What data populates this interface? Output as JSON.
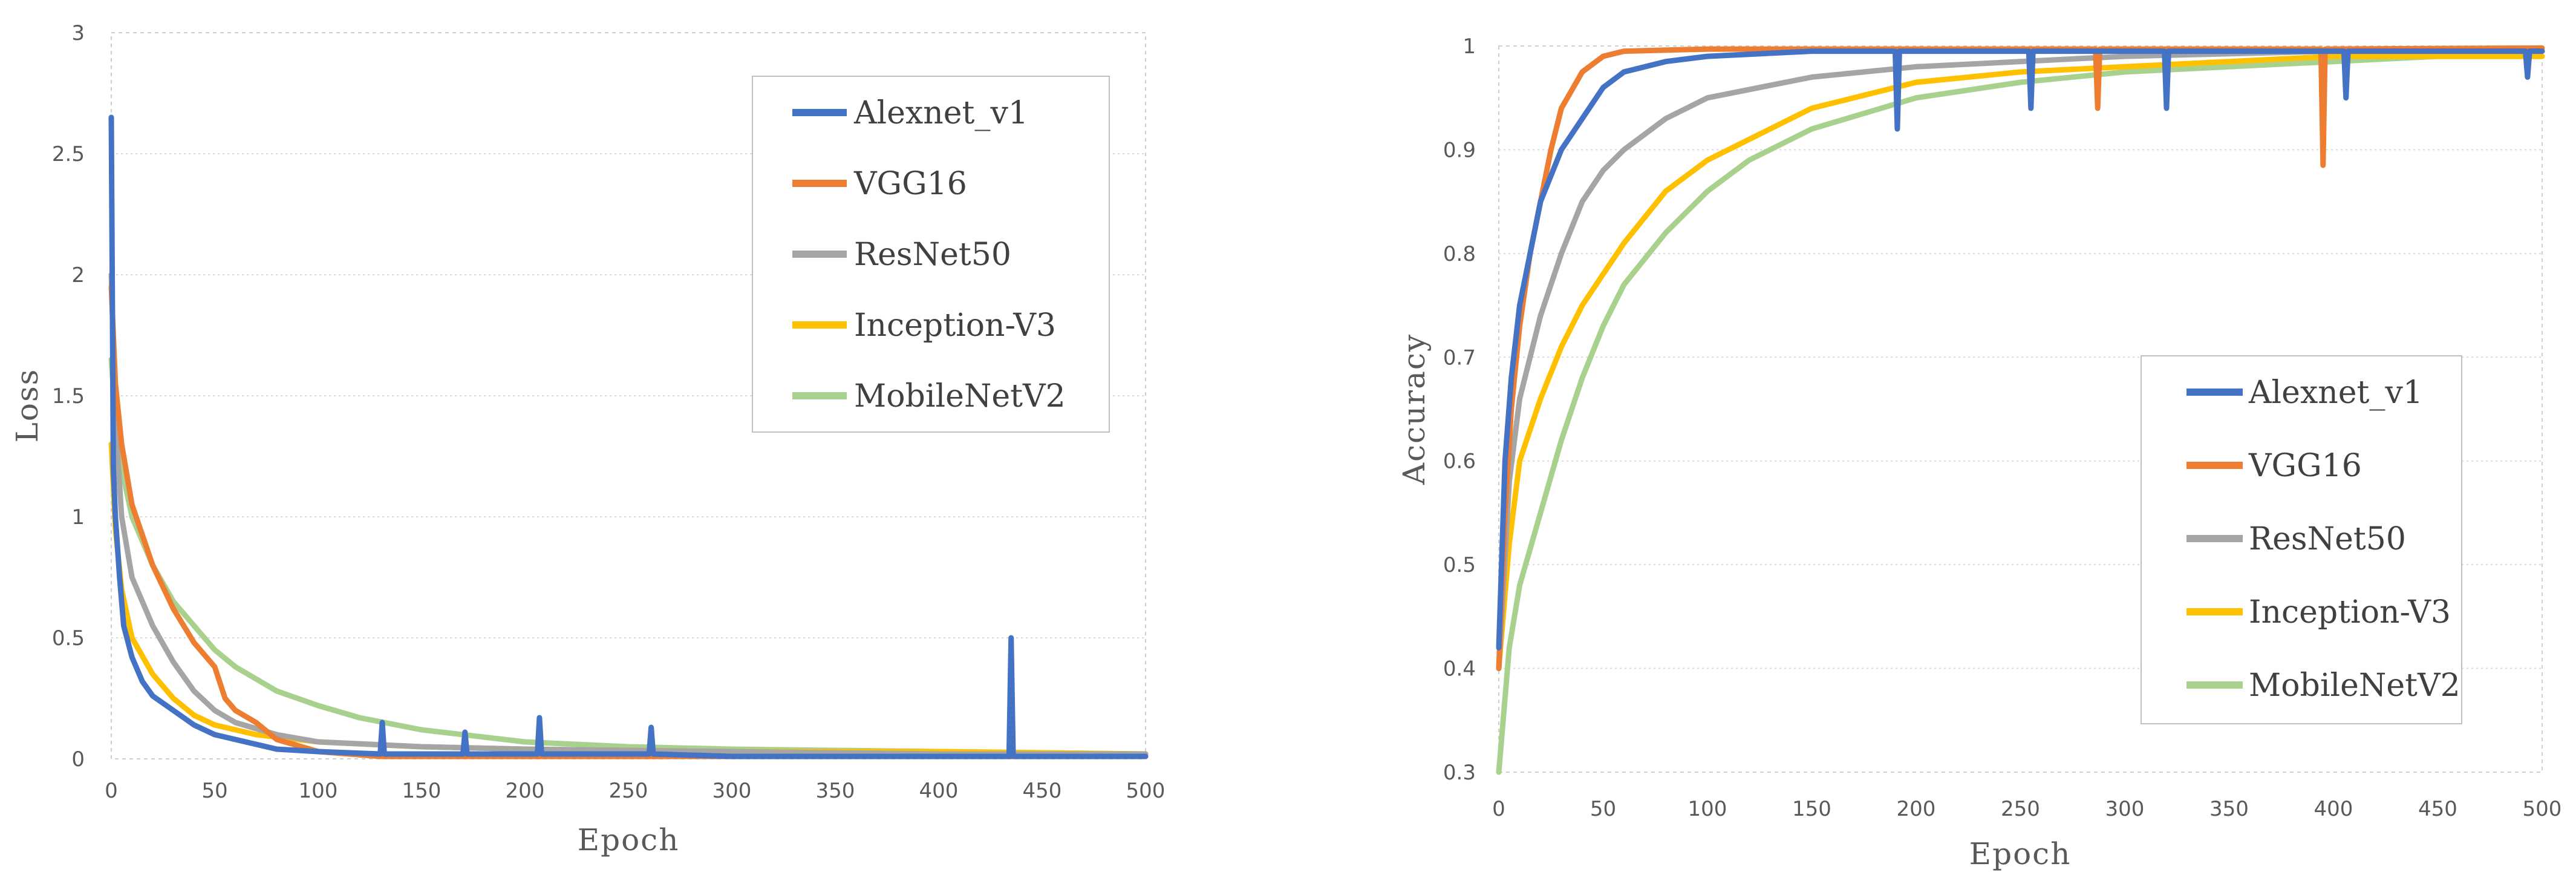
{
  "chart_data": [
    {
      "type": "line",
      "xlabel": "Epoch",
      "ylabel": "Loss",
      "xlim": [
        0,
        500
      ],
      "ylim": [
        0,
        3
      ],
      "xticks": [
        "0",
        "50",
        "100",
        "150",
        "200",
        "250",
        "300",
        "350",
        "400",
        "450",
        "500"
      ],
      "yticks": [
        "0",
        "0.5",
        "1",
        "1.5",
        "2",
        "2.5",
        "3"
      ],
      "legend_position": "top-right",
      "series": [
        {
          "name": "Alexnet_v1",
          "color": "#4472C4",
          "points": [
            [
              0,
              2.65
            ],
            [
              1,
              1.2
            ],
            [
              2,
              1.0
            ],
            [
              4,
              0.75
            ],
            [
              6,
              0.55
            ],
            [
              10,
              0.42
            ],
            [
              15,
              0.32
            ],
            [
              20,
              0.26
            ],
            [
              30,
              0.2
            ],
            [
              40,
              0.14
            ],
            [
              50,
              0.1
            ],
            [
              60,
              0.08
            ],
            [
              70,
              0.06
            ],
            [
              80,
              0.04
            ],
            [
              100,
              0.03
            ],
            [
              130,
              0.02
            ],
            [
              131,
              0.15
            ],
            [
              132,
              0.02
            ],
            [
              170,
              0.02
            ],
            [
              171,
              0.11
            ],
            [
              172,
              0.02
            ],
            [
              206,
              0.02
            ],
            [
              207,
              0.17
            ],
            [
              208,
              0.02
            ],
            [
              260,
              0.02
            ],
            [
              261,
              0.13
            ],
            [
              262,
              0.02
            ],
            [
              300,
              0.01
            ],
            [
              434,
              0.01
            ],
            [
              435,
              0.5
            ],
            [
              436,
              0.01
            ],
            [
              500,
              0.01
            ]
          ]
        },
        {
          "name": "VGG16",
          "color": "#ED7D31",
          "points": [
            [
              0,
              1.95
            ],
            [
              2,
              1.55
            ],
            [
              5,
              1.3
            ],
            [
              10,
              1.05
            ],
            [
              20,
              0.8
            ],
            [
              30,
              0.62
            ],
            [
              40,
              0.48
            ],
            [
              50,
              0.38
            ],
            [
              55,
              0.25
            ],
            [
              60,
              0.2
            ],
            [
              70,
              0.15
            ],
            [
              80,
              0.08
            ],
            [
              100,
              0.03
            ],
            [
              130,
              0.01
            ],
            [
              200,
              0.01
            ],
            [
              500,
              0.01
            ]
          ]
        },
        {
          "name": "ResNet50",
          "color": "#A5A5A5",
          "points": [
            [
              0,
              2.0
            ],
            [
              2,
              1.4
            ],
            [
              5,
              1.0
            ],
            [
              10,
              0.75
            ],
            [
              20,
              0.55
            ],
            [
              30,
              0.4
            ],
            [
              40,
              0.28
            ],
            [
              50,
              0.2
            ],
            [
              60,
              0.15
            ],
            [
              80,
              0.1
            ],
            [
              100,
              0.07
            ],
            [
              150,
              0.05
            ],
            [
              200,
              0.04
            ],
            [
              300,
              0.03
            ],
            [
              400,
              0.02
            ],
            [
              500,
              0.02
            ]
          ]
        },
        {
          "name": "Inception-V3",
          "color": "#FFC000",
          "points": [
            [
              0,
              1.3
            ],
            [
              2,
              0.95
            ],
            [
              5,
              0.7
            ],
            [
              10,
              0.5
            ],
            [
              20,
              0.35
            ],
            [
              30,
              0.25
            ],
            [
              40,
              0.18
            ],
            [
              50,
              0.14
            ],
            [
              70,
              0.1
            ],
            [
              100,
              0.07
            ],
            [
              150,
              0.05
            ],
            [
              200,
              0.04
            ],
            [
              300,
              0.03
            ],
            [
              400,
              0.03
            ],
            [
              500,
              0.02
            ]
          ]
        },
        {
          "name": "MobileNetV2",
          "color": "#A9D18E",
          "points": [
            [
              0,
              1.65
            ],
            [
              2,
              1.4
            ],
            [
              5,
              1.2
            ],
            [
              10,
              1.0
            ],
            [
              20,
              0.8
            ],
            [
              30,
              0.65
            ],
            [
              40,
              0.55
            ],
            [
              50,
              0.45
            ],
            [
              60,
              0.38
            ],
            [
              80,
              0.28
            ],
            [
              100,
              0.22
            ],
            [
              120,
              0.17
            ],
            [
              150,
              0.12
            ],
            [
              200,
              0.07
            ],
            [
              250,
              0.05
            ],
            [
              300,
              0.04
            ],
            [
              400,
              0.03
            ],
            [
              500,
              0.02
            ]
          ]
        }
      ]
    },
    {
      "type": "line",
      "xlabel": "Epoch",
      "ylabel": "Accuracy",
      "xlim": [
        0,
        500
      ],
      "ylim": [
        0.3,
        1
      ],
      "xticks": [
        "0",
        "50",
        "100",
        "150",
        "200",
        "250",
        "300",
        "350",
        "400",
        "450",
        "500"
      ],
      "yticks": [
        "0.3",
        "0.4",
        "0.5",
        "0.6",
        "0.7",
        "0.8",
        "0.9",
        "1"
      ],
      "legend_position": "center-right",
      "series": [
        {
          "name": "Alexnet_v1",
          "color": "#4472C4",
          "points": [
            [
              0,
              0.42
            ],
            [
              3,
              0.6
            ],
            [
              6,
              0.68
            ],
            [
              10,
              0.75
            ],
            [
              15,
              0.8
            ],
            [
              20,
              0.85
            ],
            [
              30,
              0.9
            ],
            [
              40,
              0.93
            ],
            [
              50,
              0.96
            ],
            [
              60,
              0.975
            ],
            [
              80,
              0.985
            ],
            [
              100,
              0.99
            ],
            [
              150,
              0.995
            ],
            [
              190,
              0.995
            ],
            [
              191,
              0.92
            ],
            [
              192,
              0.995
            ],
            [
              254,
              0.995
            ],
            [
              255,
              0.94
            ],
            [
              256,
              0.995
            ],
            [
              319,
              0.995
            ],
            [
              320,
              0.94
            ],
            [
              321,
              0.995
            ],
            [
              405,
              0.995
            ],
            [
              406,
              0.95
            ],
            [
              407,
              0.995
            ],
            [
              492,
              0.995
            ],
            [
              493,
              0.97
            ],
            [
              494,
              0.995
            ],
            [
              500,
              0.995
            ]
          ]
        },
        {
          "name": "VGG16",
          "color": "#ED7D31",
          "points": [
            [
              0,
              0.4
            ],
            [
              3,
              0.55
            ],
            [
              6,
              0.65
            ],
            [
              10,
              0.73
            ],
            [
              15,
              0.8
            ],
            [
              20,
              0.85
            ],
            [
              25,
              0.9
            ],
            [
              30,
              0.94
            ],
            [
              40,
              0.975
            ],
            [
              50,
              0.99
            ],
            [
              60,
              0.995
            ],
            [
              100,
              0.997
            ],
            [
              286,
              0.997
            ],
            [
              287,
              0.94
            ],
            [
              288,
              0.997
            ],
            [
              394,
              0.997
            ],
            [
              395,
              0.885
            ],
            [
              396,
              0.997
            ],
            [
              500,
              0.998
            ]
          ]
        },
        {
          "name": "ResNet50",
          "color": "#A5A5A5",
          "points": [
            [
              0,
              0.4
            ],
            [
              5,
              0.58
            ],
            [
              10,
              0.66
            ],
            [
              20,
              0.74
            ],
            [
              30,
              0.8
            ],
            [
              40,
              0.85
            ],
            [
              50,
              0.88
            ],
            [
              60,
              0.9
            ],
            [
              80,
              0.93
            ],
            [
              100,
              0.95
            ],
            [
              150,
              0.97
            ],
            [
              200,
              0.98
            ],
            [
              300,
              0.99
            ],
            [
              400,
              0.995
            ],
            [
              500,
              0.995
            ]
          ]
        },
        {
          "name": "Inception-V3",
          "color": "#FFC000",
          "points": [
            [
              0,
              0.4
            ],
            [
              5,
              0.52
            ],
            [
              10,
              0.6
            ],
            [
              20,
              0.66
            ],
            [
              30,
              0.71
            ],
            [
              40,
              0.75
            ],
            [
              50,
              0.78
            ],
            [
              60,
              0.81
            ],
            [
              80,
              0.86
            ],
            [
              100,
              0.89
            ],
            [
              120,
              0.91
            ],
            [
              150,
              0.94
            ],
            [
              200,
              0.965
            ],
            [
              250,
              0.975
            ],
            [
              300,
              0.98
            ],
            [
              400,
              0.99
            ],
            [
              500,
              0.99
            ]
          ]
        },
        {
          "name": "MobileNetV2",
          "color": "#A9D18E",
          "points": [
            [
              0,
              0.3
            ],
            [
              5,
              0.42
            ],
            [
              10,
              0.48
            ],
            [
              20,
              0.55
            ],
            [
              30,
              0.62
            ],
            [
              40,
              0.68
            ],
            [
              50,
              0.73
            ],
            [
              60,
              0.77
            ],
            [
              80,
              0.82
            ],
            [
              100,
              0.86
            ],
            [
              120,
              0.89
            ],
            [
              150,
              0.92
            ],
            [
              200,
              0.95
            ],
            [
              250,
              0.965
            ],
            [
              300,
              0.975
            ],
            [
              350,
              0.98
            ],
            [
              400,
              0.985
            ],
            [
              450,
              0.99
            ],
            [
              500,
              0.99
            ]
          ]
        }
      ]
    }
  ]
}
